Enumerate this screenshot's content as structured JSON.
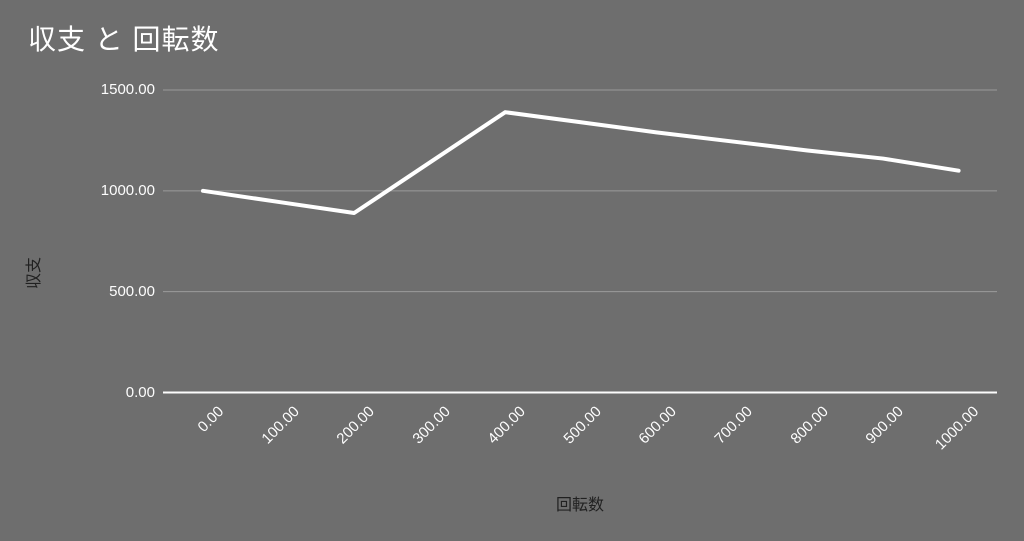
{
  "chart_data": {
    "type": "line",
    "title": "収支 と 回転数",
    "xlabel": "回転数",
    "ylabel": "収支",
    "x": [
      0,
      100,
      200,
      300,
      400,
      500,
      600,
      700,
      800,
      900,
      1000
    ],
    "series": [
      {
        "name": "収支",
        "values": [
          1000,
          945,
          890,
          1140,
          1390,
          1340,
          1290,
          1245,
          1200,
          1160,
          1100
        ]
      }
    ],
    "xlim": [
      0,
      1000
    ],
    "ylim": [
      0,
      1500
    ],
    "yticks": [
      {
        "value": 0,
        "label": "0.00"
      },
      {
        "value": 500,
        "label": "500.00"
      },
      {
        "value": 1000,
        "label": "1000.00"
      },
      {
        "value": 1500,
        "label": "1500.00"
      }
    ],
    "xticks": [
      {
        "value": 0,
        "label": "0.00"
      },
      {
        "value": 100,
        "label": "100.00"
      },
      {
        "value": 200,
        "label": "200.00"
      },
      {
        "value": 300,
        "label": "300.00"
      },
      {
        "value": 400,
        "label": "400.00"
      },
      {
        "value": 500,
        "label": "500.00"
      },
      {
        "value": 600,
        "label": "600.00"
      },
      {
        "value": 700,
        "label": "700.00"
      },
      {
        "value": 800,
        "label": "800.00"
      },
      {
        "value": 900,
        "label": "900.00"
      },
      {
        "value": 1000,
        "label": "1000.00"
      }
    ],
    "grid": true,
    "legend": "none",
    "colors": {
      "background": "#6e6e6e",
      "gridline": "#9b9b9b",
      "zero_axis_line": "#fcfcfc",
      "series_line": "#ffffff",
      "tick_text": "#fdfdfd",
      "axis_title_text": "#212121",
      "title_text": "#ffffff"
    }
  }
}
